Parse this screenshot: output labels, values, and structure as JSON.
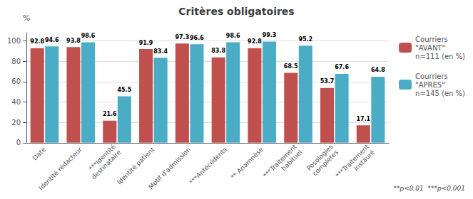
{
  "chart_data": {
    "type": "bar",
    "title": "Critères obligatoires",
    "ylabel": "%",
    "annotation": "**p<0,01  ***p<0,001",
    "categories": [
      "Date",
      "Identité rédacteur",
      "***Identité\ndestinataire",
      "Identité patient",
      "Motif d'admission",
      "***Antécédents",
      "** Anamnèse",
      "***Traitement\nhabituel",
      "Posologies\ncomplètes",
      "***Traitement\ninstauré"
    ],
    "series": [
      {
        "name": "Courriers\n\"AVANT\"\nn=111 (en %)",
        "color": "#C0504D",
        "values": [
          92.8,
          93.8,
          21.6,
          91.9,
          97.3,
          83.8,
          92.8,
          68.5,
          53.7,
          17.1
        ]
      },
      {
        "name": "Courriers\n\"APRES\"\nn=145 (en %)",
        "color": "#4BACC6",
        "values": [
          94.6,
          98.6,
          45.5,
          83.4,
          96.6,
          98.6,
          99.3,
          95.2,
          67.6,
          64.8
        ]
      }
    ],
    "ylim": [
      0,
      108
    ],
    "yticks": [
      0,
      20,
      40,
      60,
      80,
      100
    ],
    "grid": true,
    "legend": "right",
    "data_labels": true
  }
}
